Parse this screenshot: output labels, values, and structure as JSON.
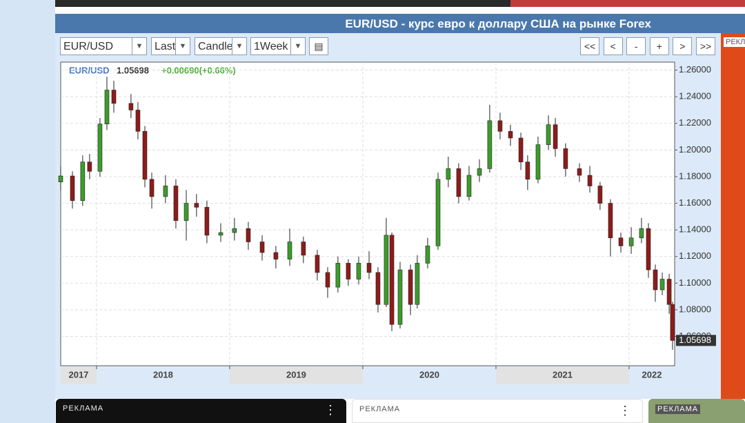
{
  "chart_data": {
    "type": "candlestick",
    "title": "EUR/USD - курс евро к доллару США на рынке Forex",
    "symbol": "EUR/USD",
    "change": "+0.00690(+0.66%)",
    "x": [
      2017.731,
      2017.819,
      2017.896,
      2017.948,
      2018.026,
      2018.078,
      2018.13,
      2018.259,
      2018.311,
      2018.363,
      2018.415,
      2018.518,
      2018.596,
      2018.674,
      2018.751,
      2018.829,
      2018.933,
      2019.036,
      2019.14,
      2019.244,
      2019.347,
      2019.451,
      2019.554,
      2019.658,
      2019.736,
      2019.813,
      2019.891,
      2019.969,
      2020.047,
      2020.114,
      2020.176,
      2020.218,
      2020.28,
      2020.358,
      2020.409,
      2020.487,
      2020.565,
      2020.642,
      2020.72,
      2020.798,
      2020.876,
      2020.953,
      2021.031,
      2021.109,
      2021.187,
      2021.238,
      2021.316,
      2021.394,
      2021.446,
      2021.523,
      2021.627,
      2021.705,
      2021.782,
      2021.86,
      2021.938,
      2022.016,
      2022.093,
      2022.145,
      2022.197,
      2022.249,
      2022.301,
      2022.326
    ],
    "open": [
      1.176,
      1.1805,
      1.162,
      1.191,
      1.184,
      1.2195,
      1.245,
      1.235,
      1.23,
      1.214,
      1.178,
      1.165,
      1.173,
      1.147,
      1.16,
      1.157,
      1.136,
      1.138,
      1.141,
      1.131,
      1.123,
      1.118,
      1.131,
      1.121,
      1.108,
      1.097,
      1.115,
      1.103,
      1.115,
      1.108,
      1.084,
      1.136,
      1.069,
      1.11,
      1.084,
      1.115,
      1.128,
      1.178,
      1.186,
      1.165,
      1.181,
      1.186,
      1.222,
      1.214,
      1.209,
      1.191,
      1.178,
      1.204,
      1.219,
      1.201,
      1.186,
      1.181,
      1.173,
      1.16,
      1.134,
      1.128,
      1.134,
      1.141,
      1.11,
      1.095,
      1.103,
      1.084
    ],
    "high": [
      1.188,
      1.184,
      1.196,
      1.197,
      1.224,
      1.255,
      1.252,
      1.242,
      1.236,
      1.218,
      1.183,
      1.181,
      1.178,
      1.17,
      1.167,
      1.162,
      1.145,
      1.149,
      1.146,
      1.136,
      1.128,
      1.141,
      1.135,
      1.125,
      1.112,
      1.12,
      1.118,
      1.12,
      1.124,
      1.112,
      1.149,
      1.138,
      1.116,
      1.114,
      1.121,
      1.134,
      1.183,
      1.195,
      1.19,
      1.188,
      1.193,
      1.234,
      1.228,
      1.219,
      1.213,
      1.196,
      1.21,
      1.226,
      1.224,
      1.205,
      1.19,
      1.188,
      1.176,
      1.163,
      1.138,
      1.142,
      1.149,
      1.145,
      1.114,
      1.108,
      1.107,
      1.086
    ],
    "low": [
      1.17,
      1.156,
      1.158,
      1.178,
      1.18,
      1.215,
      1.228,
      1.224,
      1.208,
      1.172,
      1.156,
      1.16,
      1.141,
      1.132,
      1.15,
      1.13,
      1.131,
      1.132,
      1.125,
      1.117,
      1.111,
      1.113,
      1.115,
      1.102,
      1.089,
      1.093,
      1.098,
      1.099,
      1.103,
      1.078,
      1.082,
      1.064,
      1.066,
      1.076,
      1.081,
      1.111,
      1.125,
      1.172,
      1.16,
      1.162,
      1.176,
      1.183,
      1.208,
      1.203,
      1.185,
      1.17,
      1.175,
      1.2,
      1.195,
      1.18,
      1.176,
      1.168,
      1.155,
      1.12,
      1.123,
      1.122,
      1.13,
      1.104,
      1.086,
      1.091,
      1.077,
      1.05
    ],
    "close": [
      1.1805,
      1.162,
      1.191,
      1.184,
      1.2195,
      1.245,
      1.235,
      1.23,
      1.214,
      1.178,
      1.165,
      1.173,
      1.147,
      1.16,
      1.157,
      1.136,
      1.138,
      1.141,
      1.131,
      1.123,
      1.118,
      1.131,
      1.121,
      1.108,
      1.097,
      1.115,
      1.103,
      1.115,
      1.108,
      1.084,
      1.136,
      1.069,
      1.11,
      1.084,
      1.115,
      1.128,
      1.178,
      1.186,
      1.165,
      1.181,
      1.186,
      1.222,
      1.214,
      1.209,
      1.191,
      1.178,
      1.204,
      1.219,
      1.201,
      1.186,
      1.181,
      1.173,
      1.16,
      1.134,
      1.128,
      1.134,
      1.141,
      1.11,
      1.095,
      1.103,
      1.084,
      1.05698
    ],
    "up_color": "#3c9b2c",
    "down_color": "#8e1b1b",
    "xlim": [
      2017.731,
      2022.342
    ],
    "xticks": [
      2017,
      2018,
      2019,
      2020,
      2021,
      2022
    ],
    "ylim": [
      1.038,
      1.266
    ],
    "yticks": [
      {
        "value": 1.26,
        "label": "1.26000"
      },
      {
        "value": 1.24,
        "label": "1.24000"
      },
      {
        "value": 1.22,
        "label": "1.22000"
      },
      {
        "value": 1.2,
        "label": "1.20000"
      },
      {
        "value": 1.18,
        "label": "1.18000"
      },
      {
        "value": 1.16,
        "label": "1.16000"
      },
      {
        "value": 1.14,
        "label": "1.14000"
      },
      {
        "value": 1.12,
        "label": "1.12000"
      },
      {
        "value": 1.1,
        "label": "1.10000"
      },
      {
        "value": 1.08,
        "label": "1.08000"
      },
      {
        "value": 1.06,
        "label": "1.06000"
      }
    ],
    "grid": true
  },
  "ui": {
    "selects": [
      "EUR/USD",
      "Last",
      "Candle",
      "1Week"
    ],
    "buttons": [
      "<<",
      "<",
      "-",
      "+",
      ">",
      ">>"
    ],
    "ads": [
      "РЕКЛАМА",
      "РЕКЛАМА",
      "РЕКЛАМА",
      "РЕКЛ"
    ]
  }
}
